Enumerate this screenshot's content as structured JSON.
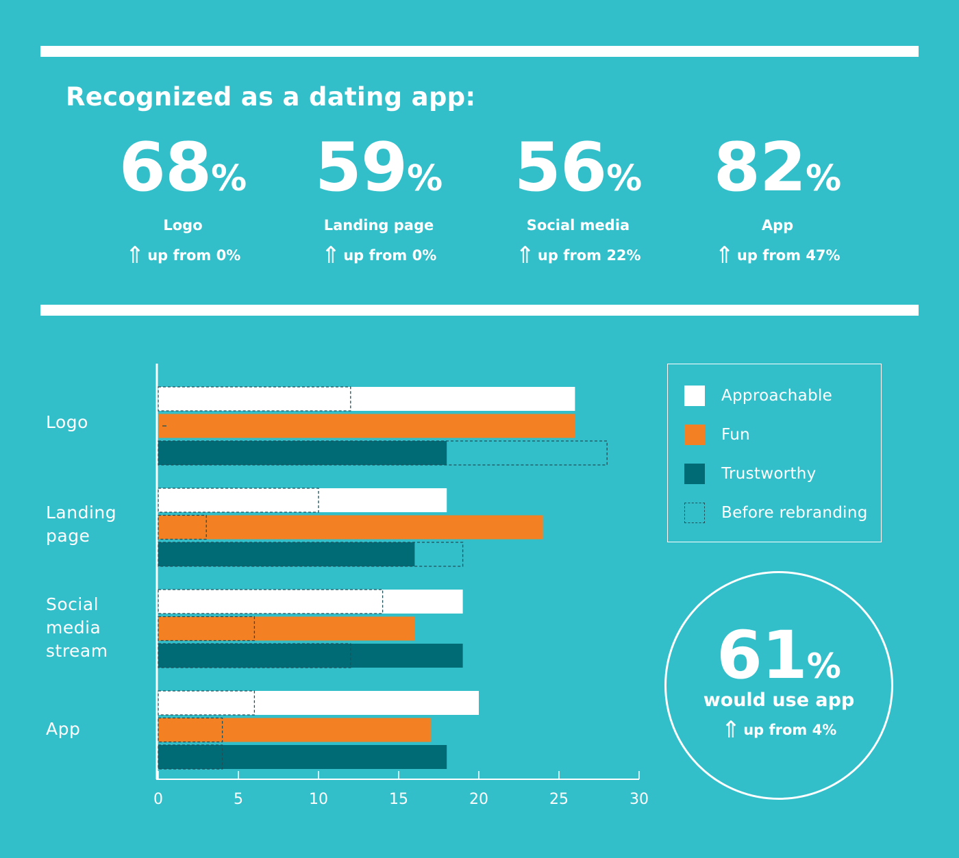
{
  "header": {
    "title": "Recognized as a dating app:"
  },
  "stats": [
    {
      "value": "68",
      "unit": "%",
      "label": "Logo",
      "arrow": "⇑",
      "change": "up from 0%"
    },
    {
      "value": "59",
      "unit": "%",
      "label": "Landing page",
      "arrow": "⇑",
      "change": "up from 0%"
    },
    {
      "value": "56",
      "unit": "%",
      "label": "Social media",
      "arrow": "⇑",
      "change": "up from 22%"
    },
    {
      "value": "82",
      "unit": "%",
      "label": "App",
      "arrow": "⇑",
      "change": "up from 47%"
    }
  ],
  "callout": {
    "value": "61",
    "unit": "%",
    "label": "would use app",
    "arrow": "⇑",
    "change": "up from 4%"
  },
  "legend": {
    "approachable": "Approachable",
    "fun": "Fun",
    "trustworthy": "Trustworthy",
    "before": "Before rebranding"
  },
  "colors": {
    "background": "#32bfca",
    "approachable": "#ffffff",
    "fun": "#f38123",
    "trustworthy": "#006b75"
  },
  "chart_data": {
    "type": "bar",
    "orientation": "horizontal",
    "categories": [
      "Logo",
      "Landing page",
      "Social media stream",
      "App"
    ],
    "category_lines": [
      [
        "Logo"
      ],
      [
        "Landing",
        "page"
      ],
      [
        "Social",
        "media",
        "stream"
      ],
      [
        "App"
      ]
    ],
    "series": [
      {
        "name": "Approachable",
        "key": "approachable",
        "values": [
          26,
          18,
          19,
          20
        ],
        "before": [
          12,
          10,
          14,
          6
        ]
      },
      {
        "name": "Fun",
        "key": "fun",
        "values": [
          26,
          24,
          16,
          17
        ],
        "before": [
          0,
          3,
          6,
          4
        ]
      },
      {
        "name": "Trustworthy",
        "key": "trustworthy",
        "values": [
          18,
          16,
          19,
          18
        ],
        "before": [
          28,
          19,
          12,
          4
        ]
      }
    ],
    "before_label": "Before rebranding",
    "xlim": [
      0,
      30
    ],
    "xticks": [
      0,
      5,
      10,
      15,
      20,
      25,
      30
    ],
    "grid": false,
    "legend_position": "right"
  }
}
